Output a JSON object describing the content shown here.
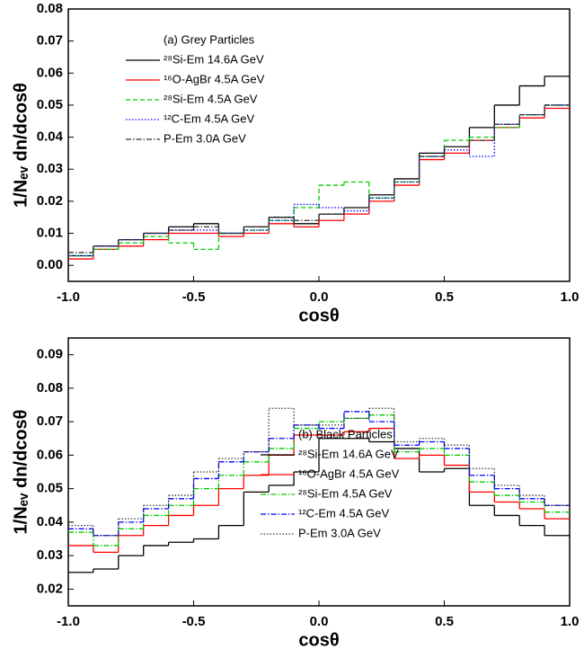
{
  "chart_data": [
    {
      "type": "histogram",
      "legend_title": "(a) Grey Particles",
      "xlabel": "cosθ",
      "ylabel": "1/Nₑᵥ dn/dcosθ",
      "legend": "upper left",
      "bins": [
        -1.0,
        -0.9,
        -0.8,
        -0.7,
        -0.6,
        -0.5,
        -0.4,
        -0.3,
        -0.2,
        -0.1,
        0.0,
        0.1,
        0.2,
        0.3,
        0.4,
        0.5,
        0.6,
        0.7,
        0.8,
        0.9,
        1.0
      ],
      "xlim": [
        -1,
        1
      ],
      "xticks": [
        {
          "value": -1,
          "label": "-1.0"
        },
        -0.5,
        {
          "value": 0,
          "label": "0.0"
        },
        0.5,
        {
          "value": 1,
          "label": "1.0"
        }
      ],
      "ylim": [
        -0.005,
        0.08
      ],
      "yticks": [
        {
          "value": 0,
          "label": "0.00"
        },
        0.01,
        0.02,
        0.03,
        0.04,
        0.05,
        0.06,
        0.07,
        0.08
      ],
      "series": [
        {
          "name": "²⁸Si-Em 14.6A GeV",
          "color": "#000000",
          "line_style": "solid",
          "values": [
            0.003,
            0.006,
            0.008,
            0.01,
            0.012,
            0.013,
            0.01,
            0.012,
            0.015,
            0.013,
            0.016,
            0.018,
            0.022,
            0.027,
            0.035,
            0.037,
            0.043,
            0.05,
            0.056,
            0.059
          ]
        },
        {
          "name": "¹⁶O-AgBr 4.5A GeV",
          "color": "#ff0000",
          "line_style": "solid",
          "values": [
            0.002,
            0.005,
            0.006,
            0.008,
            0.01,
            0.01,
            0.009,
            0.01,
            0.013,
            0.012,
            0.014,
            0.016,
            0.02,
            0.025,
            0.033,
            0.035,
            0.039,
            0.043,
            0.046,
            0.049
          ]
        },
        {
          "name": "²⁸Si-Em 4.5A GeV",
          "color": "#00cc00",
          "line_style": "dashed",
          "values": [
            0.003,
            0.005,
            0.007,
            0.009,
            0.007,
            0.005,
            0.01,
            0.011,
            0.014,
            0.018,
            0.025,
            0.026,
            0.021,
            0.026,
            0.034,
            0.039,
            0.04,
            0.043,
            0.047,
            0.05
          ]
        },
        {
          "name": "¹²C-Em 4.5A GeV",
          "color": "#0000ff",
          "line_style": "dotted",
          "values": [
            0.003,
            0.006,
            0.008,
            0.01,
            0.011,
            0.011,
            0.01,
            0.011,
            0.014,
            0.019,
            0.018,
            0.017,
            0.021,
            0.026,
            0.034,
            0.036,
            0.034,
            0.044,
            0.047,
            0.05
          ]
        },
        {
          "name": "P-Em 3.0A GeV",
          "color": "#333333",
          "line_style": "dashdot",
          "values": [
            0.004,
            0.006,
            0.008,
            0.01,
            0.011,
            0.012,
            0.01,
            0.012,
            0.015,
            0.014,
            0.016,
            0.018,
            0.022,
            0.027,
            0.034,
            0.037,
            0.039,
            0.044,
            0.047,
            0.05
          ]
        }
      ]
    },
    {
      "type": "histogram",
      "legend_title": "(b) Black Particles",
      "xlabel": "cosθ",
      "ylabel": "1/Nₑᵥ dn/dcosθ",
      "legend": "lower right",
      "bins": [
        -1.0,
        -0.9,
        -0.8,
        -0.7,
        -0.6,
        -0.5,
        -0.4,
        -0.3,
        -0.2,
        -0.1,
        0.0,
        0.1,
        0.2,
        0.3,
        0.4,
        0.5,
        0.6,
        0.7,
        0.8,
        0.9,
        1.0
      ],
      "xlim": [
        -1,
        1
      ],
      "xticks": [
        {
          "value": -1,
          "label": "-1.0"
        },
        -0.5,
        {
          "value": 0,
          "label": "0.0"
        },
        0.5,
        {
          "value": 1,
          "label": "1.0"
        }
      ],
      "ylim": [
        0.015,
        0.095
      ],
      "yticks": [
        0.02,
        0.03,
        0.04,
        0.05,
        0.06,
        0.07,
        0.08,
        0.09
      ],
      "series": [
        {
          "name": "²⁸Si-Em 14.6A GeV",
          "color": "#000000",
          "line_style": "solid",
          "values": [
            0.025,
            0.026,
            0.03,
            0.033,
            0.034,
            0.035,
            0.039,
            0.049,
            0.051,
            0.055,
            0.065,
            0.065,
            0.064,
            0.062,
            0.055,
            0.056,
            0.045,
            0.042,
            0.039,
            0.036
          ]
        },
        {
          "name": "¹⁶O-AgBr 4.5A GeV",
          "color": "#ff0000",
          "line_style": "solid",
          "values": [
            0.033,
            0.031,
            0.036,
            0.039,
            0.042,
            0.045,
            0.05,
            0.054,
            0.06,
            0.066,
            0.066,
            0.067,
            0.068,
            0.059,
            0.06,
            0.057,
            0.049,
            0.046,
            0.044,
            0.041
          ]
        },
        {
          "name": "²⁸Si-Em 4.5A GeV",
          "color": "#00cc00",
          "line_style": "dashdot",
          "values": [
            0.037,
            0.033,
            0.038,
            0.042,
            0.045,
            0.05,
            0.054,
            0.058,
            0.062,
            0.068,
            0.07,
            0.071,
            0.072,
            0.061,
            0.062,
            0.06,
            0.052,
            0.048,
            0.046,
            0.043
          ]
        },
        {
          "name": "¹²C-Em 4.5A GeV",
          "color": "#0000ff",
          "line_style": "dashdot",
          "values": [
            0.038,
            0.036,
            0.04,
            0.044,
            0.047,
            0.053,
            0.058,
            0.061,
            0.065,
            0.069,
            0.068,
            0.073,
            0.07,
            0.063,
            0.064,
            0.062,
            0.054,
            0.05,
            0.047,
            0.045
          ]
        },
        {
          "name": "P-Em 3.0A GeV",
          "color": "#333333",
          "line_style": "dotted",
          "values": [
            0.039,
            0.036,
            0.041,
            0.045,
            0.048,
            0.055,
            0.059,
            0.061,
            0.074,
            0.069,
            0.069,
            0.071,
            0.074,
            0.064,
            0.065,
            0.063,
            0.056,
            0.051,
            0.048,
            0.045
          ]
        }
      ]
    }
  ]
}
